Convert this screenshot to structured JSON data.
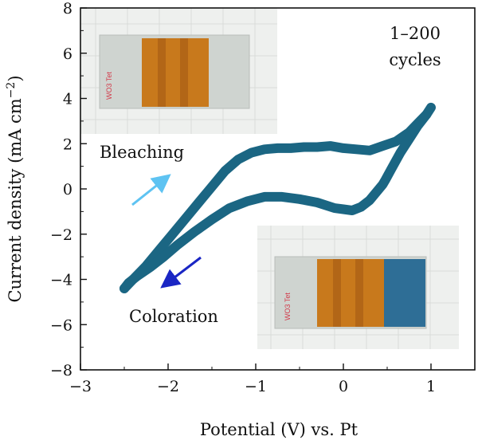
{
  "chart_data": {
    "type": "line",
    "title": "",
    "xlabel": "Potential (V) vs. Pt",
    "ylabel_parts": [
      "Current density (mA cm",
      "−2",
      ")"
    ],
    "xlim": [
      -3,
      1.5
    ],
    "ylim": [
      -8,
      8
    ],
    "x_ticks": [
      -3,
      -2,
      -1,
      0,
      1
    ],
    "x_tick_labels": [
      "−3",
      "−2",
      "−1",
      "0",
      "1"
    ],
    "y_ticks": [
      -8,
      -6,
      -4,
      -2,
      0,
      2,
      4,
      6,
      8
    ],
    "y_tick_labels": [
      "−8",
      "−6",
      "−4",
      "−2",
      "0",
      "2",
      "4",
      "6",
      "8"
    ],
    "grid": false,
    "colors": {
      "curve": "#1b6683",
      "bleach_arrow": "#5ec3f2",
      "color_arrow": "#1a26c4"
    },
    "series": [
      {
        "values_x": [
          -2.5,
          -2.4,
          -2.25,
          -2.1,
          -1.95,
          -1.8,
          -1.65,
          -1.5,
          -1.35,
          -1.2,
          -1.05,
          -0.9,
          -0.75,
          -0.6,
          -0.45,
          -0.3,
          -0.15,
          0.0,
          0.15,
          0.3,
          0.45,
          0.6,
          0.75,
          0.85,
          0.95,
          1.0
        ],
        "values_y": [
          -4.4,
          -4.0,
          -3.4,
          -2.7,
          -2.0,
          -1.3,
          -0.6,
          0.1,
          0.8,
          1.3,
          1.6,
          1.75,
          1.8,
          1.8,
          1.85,
          1.85,
          1.9,
          1.8,
          1.75,
          1.7,
          1.9,
          2.1,
          2.5,
          2.9,
          3.3,
          3.6
        ]
      },
      {
        "values_x": [
          0.95,
          0.85,
          0.75,
          0.65,
          0.55,
          0.48,
          0.45,
          0.3,
          0.2,
          0.1,
          0.0,
          -0.1,
          -0.3,
          -0.5,
          -0.7,
          -0.9,
          -1.1,
          -1.3,
          -1.5,
          -1.7,
          -1.9,
          -2.05,
          -2.2,
          -2.35,
          -2.45,
          -2.5
        ],
        "values_y": [
          3.3,
          2.8,
          2.2,
          1.6,
          0.9,
          0.4,
          0.2,
          -0.5,
          -0.8,
          -0.95,
          -0.9,
          -0.85,
          -0.6,
          -0.45,
          -0.35,
          -0.35,
          -0.55,
          -0.85,
          -1.35,
          -1.9,
          -2.5,
          -3.0,
          -3.45,
          -3.85,
          -4.15,
          -4.4
        ]
      }
    ],
    "annotations": {
      "cycles_line1": "1–200",
      "cycles_line2": "cycles",
      "bleaching": "Bleaching",
      "coloration": "Coloration",
      "photo_label": "WO3 Tet"
    }
  }
}
